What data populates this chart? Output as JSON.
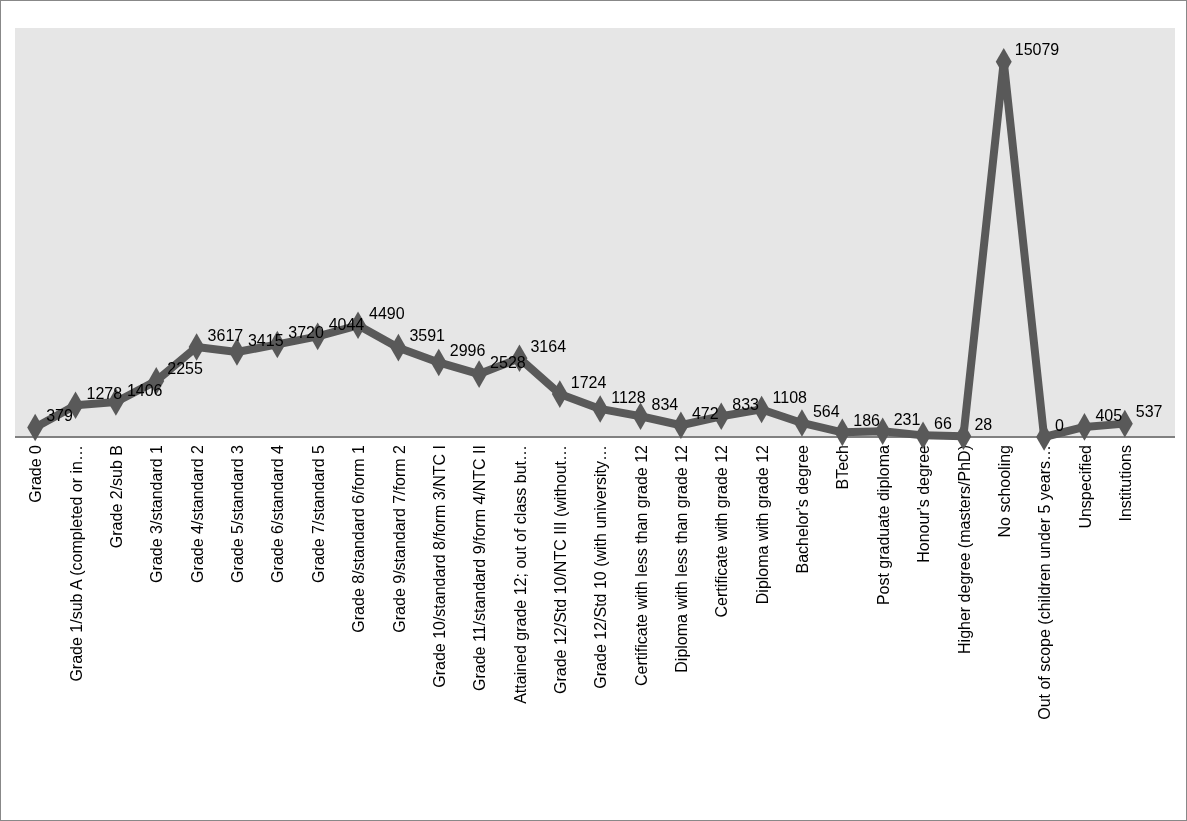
{
  "chart_data": {
    "type": "line",
    "categories": [
      "Grade 0",
      "Grade 1/sub A (completed or in…",
      "Grade 2/sub B",
      "Grade 3/standard 1",
      "Grade 4/standard 2",
      "Grade 5/standard 3",
      "Grade 6/standard 4",
      "Grade 7/standard 5",
      "Grade 8/standard 6/form 1",
      "Grade 9/standard 7/form 2",
      "Grade 10/standard 8/form 3/NTC I",
      "Grade 11/standard 9/form 4/NTC II",
      "Attained grade 12; out of class but…",
      "Grade 12/Std 10/NTC III (without…",
      "Grade 12/Std 10 (with university…",
      "Certificate with less than grade 12",
      "Diploma with less than grade 12",
      "Certificate with grade 12",
      "Diploma with grade 12",
      "Bachelor's degree",
      "BTech",
      "Post graduate diploma",
      "Honour's degree",
      "Higher degree (masters/PhD)",
      "No schooling",
      "Out of scope (children under 5 years…",
      "Unspecified",
      "Institutions"
    ],
    "series": [
      {
        "color": "#595959",
        "values": [
          379,
          1278,
          1406,
          2255,
          3617,
          3415,
          3720,
          4044,
          4490,
          3591,
          2996,
          2528,
          3164,
          1724,
          1128,
          834,
          472,
          833,
          1108,
          564,
          186,
          231,
          66,
          28,
          15079,
          0,
          405,
          537
        ]
      }
    ],
    "tick_labels": "x",
    "marker": "diamond",
    "line_style": "solid",
    "data_labels": true
  }
}
